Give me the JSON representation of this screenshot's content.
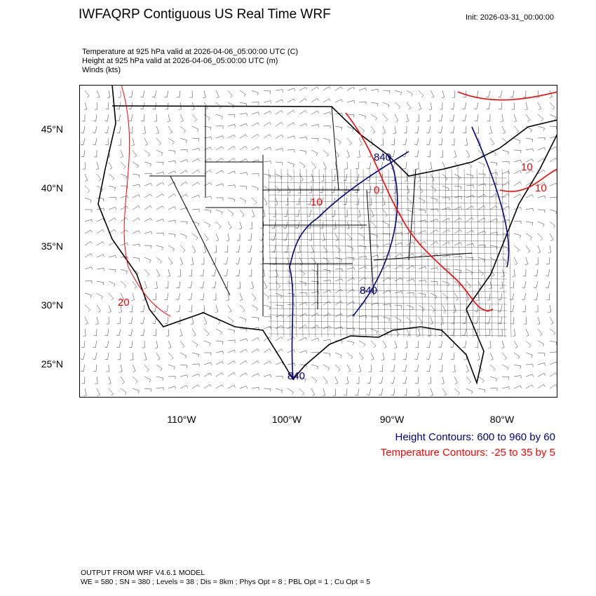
{
  "header": {
    "title": "IWFAQRP Contiguous US Real Time WRF",
    "init": "Init: 2026-03-31_00:00:00"
  },
  "fields": [
    "Temperature at 925 hPa valid at 2026-04-06_05:00:00 UTC   (C)",
    "Height at 925 hPa valid at 2026-04-06_05:00:00 UTC   (m)",
    "Winds   (kts)"
  ],
  "map": {
    "projection": "Lambert conformal, contiguous US",
    "lat_labels": [
      "45°N",
      "40°N",
      "35°N",
      "30°N",
      "25°N"
    ],
    "lon_labels": [
      "110°W",
      "100°W",
      "90°W",
      "80°W"
    ],
    "height_contour_labels": [
      "840",
      "840",
      "840"
    ],
    "temperature_contour_labels": [
      "20",
      "10",
      "10",
      "0",
      "10"
    ],
    "colors": {
      "height": "#000080",
      "temperature": "#ff0000",
      "boundaries": "#000000",
      "winds": "#000000"
    }
  },
  "legend": {
    "height": "Height Contours: 600 to 960 by 60",
    "temperature": "Temperature Contours: -25 to 35 by 5"
  },
  "footer": {
    "line1": "OUTPUT FROM WRF V4.6.1 MODEL",
    "line2": "WE = 580 ; SN = 380 ; Levels = 38 ; Dis = 8km ; Phys Opt = 8 ; PBL Opt = 1 ; Cu Opt = 5"
  }
}
